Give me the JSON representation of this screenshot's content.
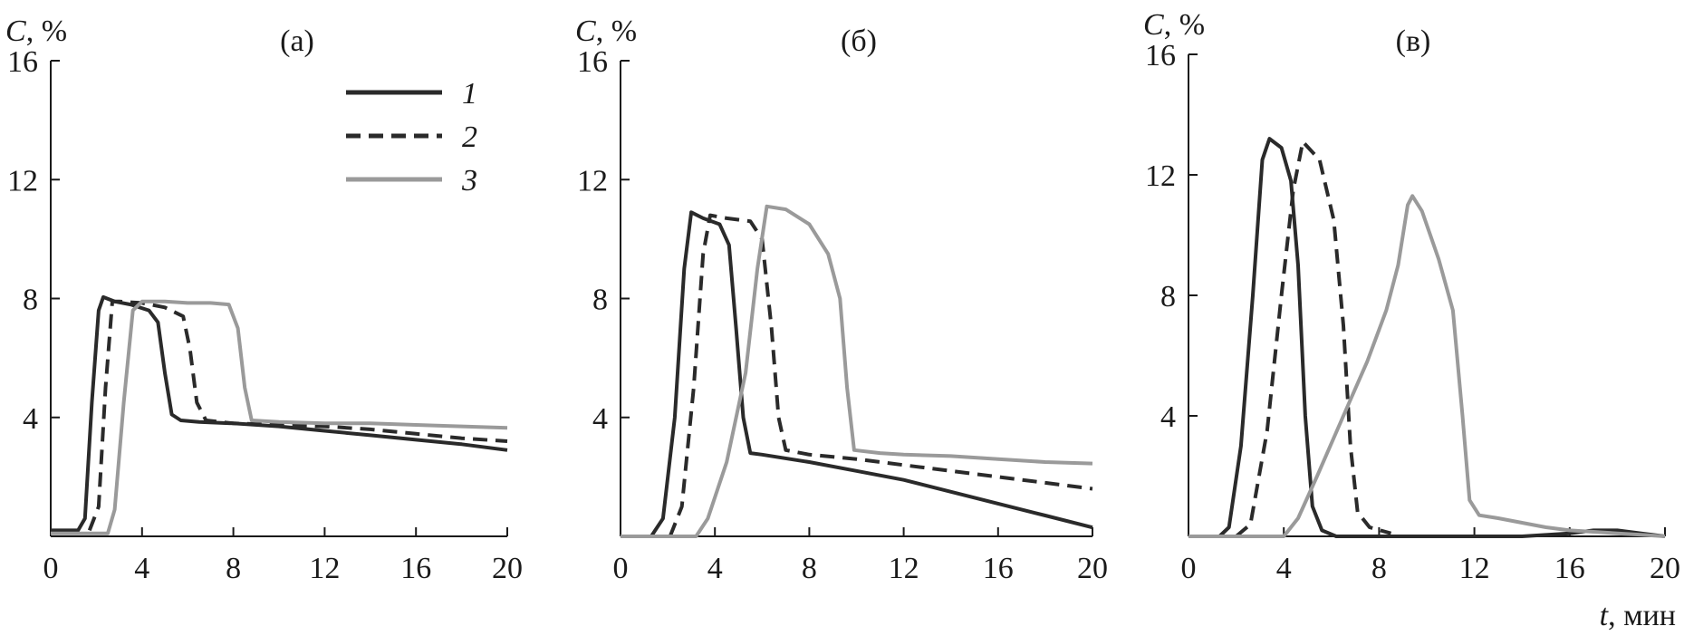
{
  "chart_data": [
    {
      "type": "line",
      "panel_label": "(а)",
      "ylabel_var": "C",
      "ylabel_unit": "%",
      "xlim": [
        0,
        20
      ],
      "ylim": [
        0,
        16
      ],
      "x_ticks": [
        "0",
        "4",
        "8",
        "12",
        "16",
        "20"
      ],
      "y_ticks": [
        "4",
        "8",
        "12",
        "16"
      ],
      "legend": {
        "placement": "top-right",
        "entries": [
          "1",
          "2",
          "3"
        ]
      },
      "series": [
        {
          "name": "1",
          "style": "solid",
          "color": "#2a2a2a",
          "points": [
            [
              0,
              0.2
            ],
            [
              1.2,
              0.2
            ],
            [
              1.5,
              0.6
            ],
            [
              1.8,
              4.5
            ],
            [
              2.1,
              7.6
            ],
            [
              2.3,
              8.05
            ],
            [
              2.8,
              7.9
            ],
            [
              3.5,
              7.8
            ],
            [
              4.3,
              7.6
            ],
            [
              4.7,
              7.2
            ],
            [
              5.0,
              5.5
            ],
            [
              5.3,
              4.1
            ],
            [
              5.7,
              3.9
            ],
            [
              6.5,
              3.85
            ],
            [
              8,
              3.8
            ],
            [
              10,
              3.7
            ],
            [
              12,
              3.55
            ],
            [
              14,
              3.4
            ],
            [
              16,
              3.25
            ],
            [
              18,
              3.1
            ],
            [
              20,
              2.9
            ]
          ]
        },
        {
          "name": "2",
          "style": "dashed",
          "color": "#2a2a2a",
          "points": [
            [
              1.7,
              0.2
            ],
            [
              2.1,
              1.0
            ],
            [
              2.4,
              5.0
            ],
            [
              2.7,
              7.9
            ],
            [
              3.0,
              7.9
            ],
            [
              4,
              7.85
            ],
            [
              5,
              7.7
            ],
            [
              5.8,
              7.4
            ],
            [
              6.1,
              6.3
            ],
            [
              6.4,
              4.5
            ],
            [
              6.8,
              3.9
            ],
            [
              8,
              3.8
            ],
            [
              10,
              3.75
            ],
            [
              12,
              3.7
            ],
            [
              14,
              3.6
            ],
            [
              16,
              3.45
            ],
            [
              18,
              3.3
            ],
            [
              20,
              3.2
            ]
          ]
        },
        {
          "name": "3",
          "style": "solid",
          "color": "#9a9a9a",
          "points": [
            [
              0,
              0.1
            ],
            [
              2.5,
              0.1
            ],
            [
              2.8,
              0.9
            ],
            [
              3.2,
              4.5
            ],
            [
              3.6,
              7.6
            ],
            [
              4,
              7.9
            ],
            [
              5,
              7.9
            ],
            [
              6,
              7.85
            ],
            [
              7,
              7.85
            ],
            [
              7.8,
              7.8
            ],
            [
              8.2,
              7.0
            ],
            [
              8.5,
              5.0
            ],
            [
              8.8,
              3.9
            ],
            [
              10,
              3.85
            ],
            [
              12,
              3.8
            ],
            [
              14,
              3.8
            ],
            [
              16,
              3.75
            ],
            [
              18,
              3.7
            ],
            [
              20,
              3.65
            ]
          ]
        }
      ]
    },
    {
      "type": "line",
      "panel_label": "(б)",
      "ylabel_var": "C",
      "ylabel_unit": "%",
      "xlim": [
        0,
        20
      ],
      "ylim": [
        0,
        16
      ],
      "x_ticks": [
        "0",
        "4",
        "8",
        "12",
        "16",
        "20"
      ],
      "y_ticks": [
        "4",
        "8",
        "12",
        "16"
      ],
      "series": [
        {
          "name": "1",
          "style": "solid",
          "color": "#2a2a2a",
          "points": [
            [
              0,
              0.0
            ],
            [
              1.3,
              0.0
            ],
            [
              1.8,
              0.6
            ],
            [
              2.3,
              4.0
            ],
            [
              2.7,
              9.0
            ],
            [
              3.0,
              10.9
            ],
            [
              3.5,
              10.7
            ],
            [
              4.2,
              10.5
            ],
            [
              4.6,
              9.8
            ],
            [
              4.9,
              7.0
            ],
            [
              5.2,
              4.0
            ],
            [
              5.5,
              2.8
            ],
            [
              6,
              2.75
            ],
            [
              8,
              2.5
            ],
            [
              10,
              2.2
            ],
            [
              12,
              1.9
            ],
            [
              14,
              1.5
            ],
            [
              16,
              1.1
            ],
            [
              18,
              0.7
            ],
            [
              20,
              0.3
            ]
          ]
        },
        {
          "name": "2",
          "style": "dashed",
          "color": "#2a2a2a",
          "points": [
            [
              2.1,
              0.0
            ],
            [
              2.6,
              1.0
            ],
            [
              3.1,
              5.0
            ],
            [
              3.5,
              9.5
            ],
            [
              3.8,
              10.8
            ],
            [
              4.5,
              10.7
            ],
            [
              5.5,
              10.6
            ],
            [
              6.0,
              10.0
            ],
            [
              6.4,
              7.0
            ],
            [
              6.7,
              4.0
            ],
            [
              7.0,
              2.9
            ],
            [
              8,
              2.75
            ],
            [
              10,
              2.6
            ],
            [
              12,
              2.4
            ],
            [
              14,
              2.2
            ],
            [
              16,
              2.0
            ],
            [
              18,
              1.8
            ],
            [
              20,
              1.6
            ]
          ]
        },
        {
          "name": "3",
          "style": "solid",
          "color": "#9a9a9a",
          "points": [
            [
              0,
              0.0
            ],
            [
              3.2,
              0.0
            ],
            [
              3.7,
              0.6
            ],
            [
              4.5,
              2.5
            ],
            [
              5.3,
              5.5
            ],
            [
              5.8,
              9.0
            ],
            [
              6.2,
              11.1
            ],
            [
              7,
              11.0
            ],
            [
              8,
              10.5
            ],
            [
              8.8,
              9.5
            ],
            [
              9.3,
              8.0
            ],
            [
              9.6,
              5.0
            ],
            [
              9.9,
              2.9
            ],
            [
              11,
              2.8
            ],
            [
              12,
              2.75
            ],
            [
              14,
              2.7
            ],
            [
              16,
              2.6
            ],
            [
              18,
              2.5
            ],
            [
              20,
              2.45
            ]
          ]
        }
      ]
    },
    {
      "type": "line",
      "panel_label": "(в)",
      "ylabel_var": "C",
      "ylabel_unit": "%",
      "xlabel_var": "t",
      "xlabel_unit": "мин",
      "xlim": [
        0,
        20
      ],
      "ylim": [
        0,
        16
      ],
      "x_ticks": [
        "0",
        "4",
        "8",
        "12",
        "16",
        "20"
      ],
      "y_ticks": [
        "4",
        "8",
        "12",
        "16"
      ],
      "series": [
        {
          "name": "1",
          "style": "solid",
          "color": "#2a2a2a",
          "points": [
            [
              0,
              0.0
            ],
            [
              1.3,
              0.0
            ],
            [
              1.7,
              0.3
            ],
            [
              2.2,
              3.0
            ],
            [
              2.7,
              8.0
            ],
            [
              3.1,
              12.5
            ],
            [
              3.4,
              13.2
            ],
            [
              3.9,
              12.9
            ],
            [
              4.3,
              11.8
            ],
            [
              4.6,
              9.0
            ],
            [
              4.9,
              4.0
            ],
            [
              5.2,
              1.0
            ],
            [
              5.6,
              0.2
            ],
            [
              6.2,
              0.0
            ],
            [
              10,
              0.0
            ],
            [
              14,
              0.0
            ],
            [
              16,
              0.1
            ],
            [
              17,
              0.2
            ],
            [
              18,
              0.2
            ],
            [
              19,
              0.1
            ],
            [
              20,
              0.0
            ]
          ]
        },
        {
          "name": "2",
          "style": "dashed",
          "color": "#2a2a2a",
          "points": [
            [
              2.0,
              0.0
            ],
            [
              2.6,
              0.4
            ],
            [
              3.3,
              3.5
            ],
            [
              3.9,
              8.0
            ],
            [
              4.4,
              11.5
            ],
            [
              4.8,
              13.1
            ],
            [
              5.5,
              12.5
            ],
            [
              6.1,
              10.5
            ],
            [
              6.5,
              7.0
            ],
            [
              6.8,
              3.0
            ],
            [
              7.1,
              0.8
            ],
            [
              7.6,
              0.3
            ],
            [
              8.5,
              0.1
            ]
          ]
        },
        {
          "name": "3",
          "style": "solid",
          "color": "#9a9a9a",
          "points": [
            [
              0,
              0.0
            ],
            [
              4,
              0.0
            ],
            [
              4.6,
              0.6
            ],
            [
              5.4,
              2.0
            ],
            [
              6.5,
              4.0
            ],
            [
              7.5,
              5.8
            ],
            [
              8.3,
              7.5
            ],
            [
              8.8,
              9.0
            ],
            [
              9.2,
              11.0
            ],
            [
              9.4,
              11.3
            ],
            [
              9.8,
              10.8
            ],
            [
              10.5,
              9.2
            ],
            [
              11.1,
              7.5
            ],
            [
              11.5,
              4.0
            ],
            [
              11.8,
              1.2
            ],
            [
              12.2,
              0.7
            ],
            [
              13,
              0.6
            ],
            [
              14,
              0.45
            ],
            [
              15,
              0.3
            ],
            [
              16,
              0.2
            ],
            [
              17,
              0.15
            ],
            [
              18,
              0.1
            ],
            [
              19,
              0.05
            ],
            [
              20,
              0.0
            ]
          ]
        }
      ]
    }
  ]
}
